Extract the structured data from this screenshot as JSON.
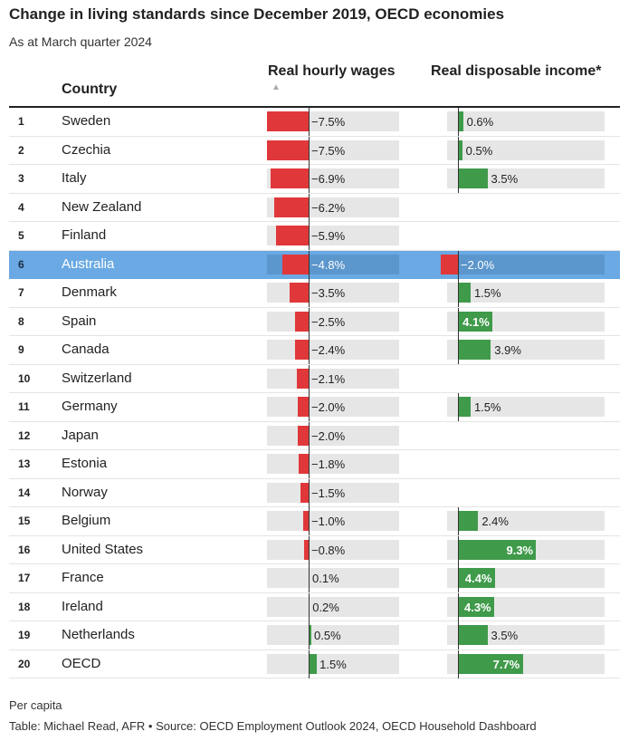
{
  "header": {
    "title": "Change in living standards since December 2019, OECD economies",
    "subtitle": "As at March quarter 2024"
  },
  "columns": {
    "country": "Country",
    "wages": "Real hourly wages",
    "income": "Real disposable income*",
    "sort_indicator": "▲"
  },
  "colors": {
    "negative": "#e0383a",
    "positive": "#3f9a4a",
    "highlight": "#6aa9e3"
  },
  "chart_data": {
    "type": "table",
    "title": "Change in living standards since December 2019, OECD economies",
    "subtitle": "As at March quarter 2024",
    "series": [
      {
        "name": "Real hourly wages",
        "unit": "%",
        "range": [
          -7.5,
          1.5
        ]
      },
      {
        "name": "Real disposable income*",
        "unit": "%",
        "range": [
          -2.0,
          9.3
        ]
      }
    ],
    "highlighted": "Australia",
    "rows": [
      {
        "rank": "1",
        "country": "Sweden",
        "wages": -7.5,
        "wages_label": "−7.5%",
        "income": 0.6,
        "income_label": "0.6%"
      },
      {
        "rank": "2",
        "country": "Czechia",
        "wages": -7.5,
        "wages_label": "−7.5%",
        "income": 0.5,
        "income_label": "0.5%"
      },
      {
        "rank": "3",
        "country": "Italy",
        "wages": -6.9,
        "wages_label": "−6.9%",
        "income": 3.5,
        "income_label": "3.5%"
      },
      {
        "rank": "4",
        "country": "New Zealand",
        "wages": -6.2,
        "wages_label": "−6.2%",
        "income": null,
        "income_label": ""
      },
      {
        "rank": "5",
        "country": "Finland",
        "wages": -5.9,
        "wages_label": "−5.9%",
        "income": null,
        "income_label": ""
      },
      {
        "rank": "6",
        "country": "Australia",
        "wages": -4.8,
        "wages_label": "−4.8%",
        "income": -2.0,
        "income_label": "−2.0%"
      },
      {
        "rank": "7",
        "country": "Denmark",
        "wages": -3.5,
        "wages_label": "−3.5%",
        "income": 1.5,
        "income_label": "1.5%"
      },
      {
        "rank": "8",
        "country": "Spain",
        "wages": -2.5,
        "wages_label": "−2.5%",
        "income": 4.1,
        "income_label": "4.1%"
      },
      {
        "rank": "9",
        "country": "Canada",
        "wages": -2.4,
        "wages_label": "−2.4%",
        "income": 3.9,
        "income_label": "3.9%"
      },
      {
        "rank": "10",
        "country": "Switzerland",
        "wages": -2.1,
        "wages_label": "−2.1%",
        "income": null,
        "income_label": ""
      },
      {
        "rank": "11",
        "country": "Germany",
        "wages": -2.0,
        "wages_label": "−2.0%",
        "income": 1.5,
        "income_label": "1.5%"
      },
      {
        "rank": "12",
        "country": "Japan",
        "wages": -2.0,
        "wages_label": "−2.0%",
        "income": null,
        "income_label": ""
      },
      {
        "rank": "13",
        "country": "Estonia",
        "wages": -1.8,
        "wages_label": "−1.8%",
        "income": null,
        "income_label": ""
      },
      {
        "rank": "14",
        "country": "Norway",
        "wages": -1.5,
        "wages_label": "−1.5%",
        "income": null,
        "income_label": ""
      },
      {
        "rank": "15",
        "country": "Belgium",
        "wages": -1.0,
        "wages_label": "−1.0%",
        "income": 2.4,
        "income_label": "2.4%"
      },
      {
        "rank": "16",
        "country": "United States",
        "wages": -0.8,
        "wages_label": "−0.8%",
        "income": 9.3,
        "income_label": "9.3%"
      },
      {
        "rank": "17",
        "country": "France",
        "wages": 0.1,
        "wages_label": "0.1%",
        "income": 4.4,
        "income_label": "4.4%"
      },
      {
        "rank": "18",
        "country": "Ireland",
        "wages": 0.2,
        "wages_label": "0.2%",
        "income": 4.3,
        "income_label": "4.3%"
      },
      {
        "rank": "19",
        "country": "Netherlands",
        "wages": 0.5,
        "wages_label": "0.5%",
        "income": 3.5,
        "income_label": "3.5%"
      },
      {
        "rank": "20",
        "country": "OECD",
        "wages": 1.5,
        "wages_label": "1.5%",
        "income": 7.7,
        "income_label": "7.7%"
      }
    ]
  },
  "footer": {
    "note": "Per capita",
    "source": "Table: Michael Read, AFR • Source: OECD Employment Outlook 2024, OECD Household Dashboard"
  }
}
